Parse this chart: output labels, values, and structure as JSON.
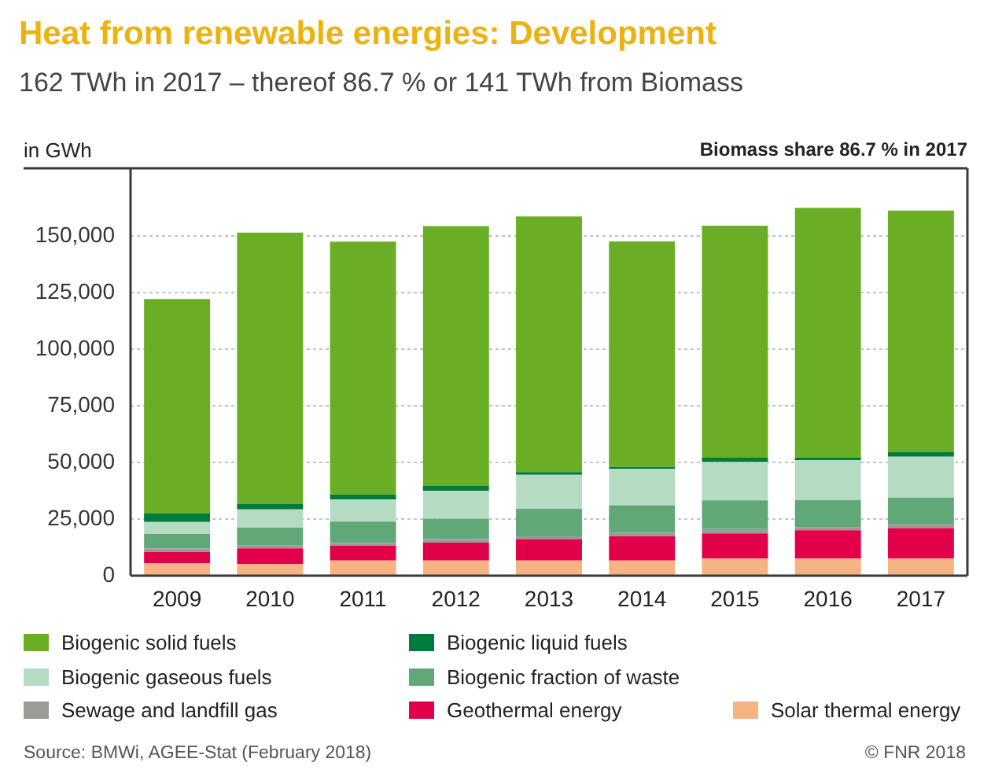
{
  "chart_data": {
    "type": "bar",
    "title": "Heat from renewable energies: Development",
    "subtitle": "162 TWh in 2017 – thereof 86.7 % or 141 TWh from Biomass",
    "ylabel": "in GWh",
    "annotations": [
      "Biomass share 86.7 % in 2017",
      "Source: BMWi, AGEE-Stat (February 2018)",
      "© FNR 2018"
    ],
    "categories": [
      "2009",
      "2010",
      "2011",
      "2012",
      "2013",
      "2014",
      "2015",
      "2016",
      "2017"
    ],
    "stacked": true,
    "series": [
      {
        "name": "Solar thermal energy",
        "color": "#f6b383",
        "values": [
          5600,
          5100,
          6700,
          6700,
          6700,
          6700,
          7600,
          7600,
          7600
        ]
      },
      {
        "name": "Geothermal energy",
        "color": "#e2004b",
        "values": [
          4900,
          7000,
          6500,
          7900,
          9500,
          10700,
          11100,
          12500,
          13400
        ]
      },
      {
        "name": "Sewage and landfill gas",
        "color": "#9b9c96",
        "values": [
          1600,
          1200,
          1200,
          1600,
          1200,
          1600,
          1900,
          1200,
          1900
        ]
      },
      {
        "name": "Biogenic fraction of waste",
        "color": "#60a878",
        "values": [
          6300,
          7900,
          9500,
          9000,
          12100,
          12100,
          12700,
          12100,
          11600
        ]
      },
      {
        "name": "Biogenic gaseous fuels",
        "color": "#b6dbc3",
        "values": [
          5300,
          8100,
          9700,
          12300,
          15100,
          16200,
          16900,
          17600,
          18100
        ]
      },
      {
        "name": "Biogenic liquid fuels",
        "color": "#007b3b",
        "values": [
          3900,
          2500,
          2300,
          2300,
          1200,
          700,
          1900,
          1200,
          2100
        ]
      },
      {
        "name": "Biogenic solid fuels",
        "color": "#69ae24",
        "values": [
          94600,
          119800,
          111700,
          114700,
          112900,
          99700,
          102500,
          110300,
          106600
        ]
      }
    ],
    "ylim": [
      0,
      180000
    ],
    "yticks": [
      {
        "value": 0,
        "label": "0"
      },
      {
        "value": 25000,
        "label": "25,000"
      },
      {
        "value": 50000,
        "label": "50,000"
      },
      {
        "value": 75000,
        "label": "75,000"
      },
      {
        "value": 100000,
        "label": "100,000"
      },
      {
        "value": 125000,
        "label": "125,000"
      },
      {
        "value": 150000,
        "label": "150,000"
      }
    ],
    "grid": "y",
    "legend": "bottom"
  }
}
